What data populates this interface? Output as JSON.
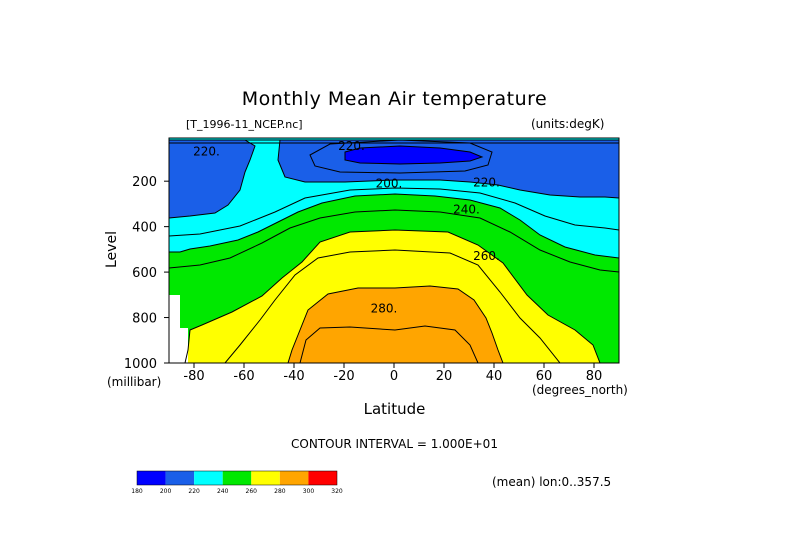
{
  "title": "Monthly Mean Air temperature",
  "file_label": "[T_1996-11_NCEP.nc]",
  "units_label": "(units:degK)",
  "ylabel": "Level",
  "yunit": "(millibar)",
  "xlabel": "Latitude",
  "xunit": "(degrees_north)",
  "contour_interval": "CONTOUR INTERVAL = 1.000E+01",
  "mean_note": "(mean) lon:0..357.5",
  "chart_data": {
    "type": "contour",
    "title": "Monthly Mean Air temperature",
    "xlabel": "Latitude",
    "ylabel": "Level",
    "x_unit": "degrees_north",
    "y_unit": "millibar",
    "xlim": [
      -90,
      90
    ],
    "ylim": [
      1000,
      10
    ],
    "x_ticks": [
      -80,
      -60,
      -40,
      -20,
      0,
      20,
      40,
      60,
      80
    ],
    "y_ticks": [
      200,
      400,
      600,
      800,
      1000
    ],
    "contour_labels": [
      {
        "label": "220.",
        "x": -75,
        "y": 70
      },
      {
        "label": "220.",
        "x": -17,
        "y": 45
      },
      {
        "label": "200.",
        "x": -2,
        "y": 210
      },
      {
        "label": "220.",
        "x": 37,
        "y": 205
      },
      {
        "label": "240.",
        "x": 29,
        "y": 325
      },
      {
        "label": "260.",
        "x": 37,
        "y": 530
      },
      {
        "label": "280.",
        "x": -4,
        "y": 760
      }
    ],
    "colorbar": {
      "levels": [
        "180",
        "200",
        "220",
        "240",
        "260",
        "280",
        "300",
        "320"
      ],
      "colors": [
        "#0000ff",
        "#1a5fe8",
        "#00ffff",
        "#00e800",
        "#ffff00",
        "#ffa500",
        "#ff0000"
      ]
    }
  }
}
